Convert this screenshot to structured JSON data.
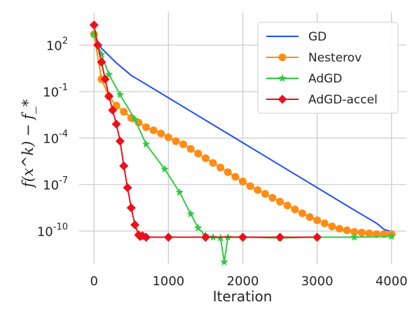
{
  "chart_data": {
    "type": "line",
    "xlabel": "Iteration",
    "ylabel": "f(x^k) − f_*",
    "y_scale": "log",
    "xlim": [
      -200,
      4200
    ],
    "ylim_exponent": [
      -12.1,
      4.1
    ],
    "x_ticks": [
      0,
      1000,
      2000,
      3000,
      4000
    ],
    "y_ticks": [
      {
        "exp": 2,
        "base": "10",
        "sup": "2"
      },
      {
        "exp": -1,
        "base": "10",
        "sup": "-1"
      },
      {
        "exp": -4,
        "base": "10",
        "sup": "-4"
      },
      {
        "exp": -7,
        "base": "10",
        "sup": "-7"
      },
      {
        "exp": -10,
        "base": "10",
        "sup": "-10"
      }
    ],
    "grid": true,
    "legend_position": "top-right",
    "series": [
      {
        "name": "GD",
        "color": "#1f4ff5",
        "marker": "none",
        "x": [
          0,
          100,
          300,
          500,
          1000,
          1500,
          2000,
          2500,
          3000,
          3500,
          3800,
          3900,
          4000
        ],
        "y_log10": [
          2.7,
          1.8,
          0.85,
          0.05,
          -1.4,
          -2.85,
          -4.3,
          -5.75,
          -7.2,
          -8.65,
          -9.5,
          -9.9,
          -10.05
        ]
      },
      {
        "name": "Nesterov",
        "color": "#ff8c16",
        "marker": "circle",
        "x": [
          0,
          100,
          200,
          300,
          400,
          500,
          600,
          700,
          800,
          900,
          1000,
          1100,
          1200,
          1300,
          1400,
          1500,
          1600,
          1700,
          1800,
          1900,
          2000,
          2100,
          2200,
          2300,
          2400,
          2500,
          2600,
          2700,
          2800,
          2900,
          3000,
          3100,
          3200,
          3300,
          3400,
          3500,
          3600,
          3700,
          3800,
          3900,
          4000
        ],
        "y_log10": [
          2.7,
          -0.2,
          -1.3,
          -1.9,
          -2.3,
          -2.7,
          -3.0,
          -3.3,
          -3.5,
          -3.7,
          -3.95,
          -4.2,
          -4.4,
          -4.7,
          -5.0,
          -5.3,
          -5.6,
          -5.9,
          -6.2,
          -6.5,
          -6.8,
          -7.1,
          -7.35,
          -7.6,
          -7.85,
          -8.1,
          -8.35,
          -8.6,
          -8.85,
          -9.1,
          -9.3,
          -9.5,
          -9.7,
          -9.85,
          -9.95,
          -10.05,
          -10.1,
          -10.15,
          -10.2,
          -10.2,
          -10.2
        ]
      },
      {
        "name": "AdGD",
        "color": "#2ecc40",
        "marker": "star",
        "x": [
          0,
          100,
          200,
          350,
          550,
          700,
          950,
          1150,
          1300,
          1400,
          1500,
          1600,
          1700,
          1750,
          1800,
          2000,
          2500,
          3000,
          3500,
          4000
        ],
        "y_log10": [
          2.7,
          1.4,
          0.1,
          -1.2,
          -2.8,
          -4.4,
          -6.0,
          -7.5,
          -8.9,
          -9.8,
          -10.3,
          -10.4,
          -10.45,
          -12.0,
          -10.4,
          -10.4,
          -10.45,
          -10.4,
          -10.4,
          -10.35
        ]
      },
      {
        "name": "AdGD-accel",
        "color": "#e8121d",
        "marker": "diamond",
        "x": [
          0,
          50,
          100,
          150,
          200,
          250,
          300,
          350,
          400,
          450,
          500,
          550,
          600,
          620,
          650,
          700,
          1000,
          1500,
          2000,
          2500,
          3000
        ],
        "y_log10": [
          3.3,
          2.0,
          0.9,
          -0.2,
          -1.3,
          -2.2,
          -3.1,
          -4.2,
          -5.8,
          -7.2,
          -8.5,
          -9.6,
          -10.25,
          -10.35,
          -10.3,
          -10.4,
          -10.4,
          -10.4,
          -10.4,
          -10.4,
          -10.4
        ]
      }
    ]
  }
}
